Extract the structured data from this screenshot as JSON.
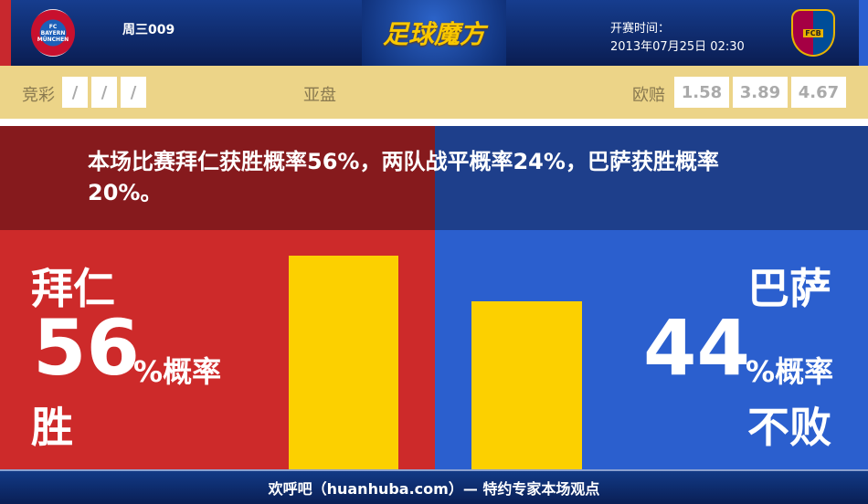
{
  "header": {
    "home_logo_text": "FC BAYERN MÜNCHEN",
    "away_logo_text": "FCB",
    "match_no": "周三009",
    "brand": "足球魔方",
    "kickoff_label": "开赛时间：",
    "kickoff_time": "2013年07月25日 02:30"
  },
  "odds": {
    "jingcai_label": "竞彩",
    "jingcai_values": [
      "/",
      "/",
      "/"
    ],
    "asian_label": "亚盘",
    "euro_label": "欧赔",
    "euro_values": [
      "1.58",
      "3.89",
      "4.67"
    ]
  },
  "summary": "本场比赛拜仁获胜概率56%，两队战平概率24%，巴萨获胜概率20%。",
  "home": {
    "team": "拜仁",
    "percent": "56",
    "suffix": "%概率",
    "outcome": "胜",
    "fraction": 0.56,
    "color": "#cd2a2a"
  },
  "away": {
    "team": "巴萨",
    "percent": "44",
    "suffix": "%概率",
    "outcome": "不败",
    "fraction": 0.44,
    "color": "#2b5fce"
  },
  "bar_color": "#fcd000",
  "footer": "欢呼吧（huanhuba.com）— 特约专家本场观点"
}
